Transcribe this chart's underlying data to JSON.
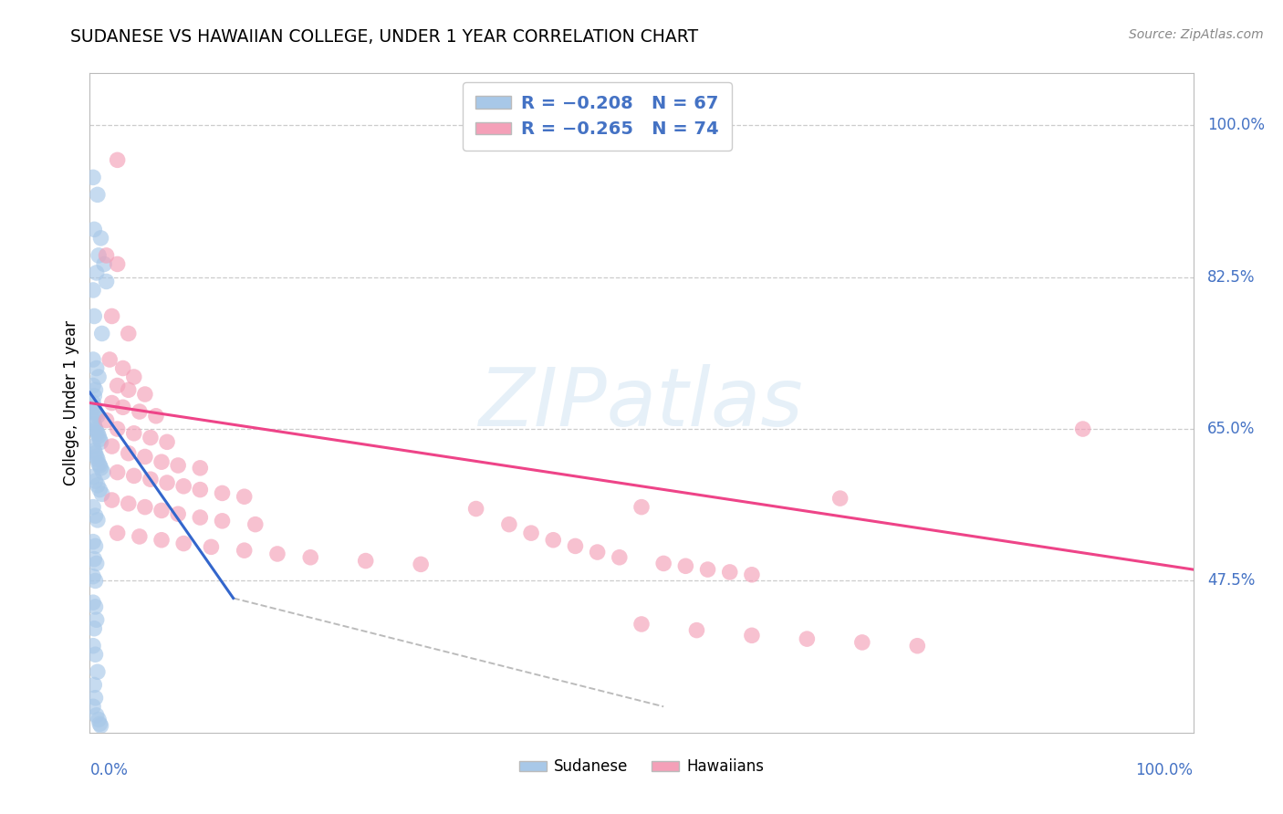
{
  "title": "SUDANESE VS HAWAIIAN COLLEGE, UNDER 1 YEAR CORRELATION CHART",
  "source": "Source: ZipAtlas.com",
  "ylabel": "College, Under 1 year",
  "y_ticks_pct": [
    47.5,
    65.0,
    82.5,
    100.0
  ],
  "x_range": [
    0.0,
    1.0
  ],
  "y_range": [
    0.3,
    1.06
  ],
  "color_blue": "#a8c8e8",
  "color_pink": "#f4a0b8",
  "color_blue_line": "#3366cc",
  "color_pink_line": "#ee4488",
  "color_dashed_line": "#bbbbbb",
  "sudanese_points": [
    [
      0.003,
      0.94
    ],
    [
      0.007,
      0.92
    ],
    [
      0.004,
      0.88
    ],
    [
      0.01,
      0.87
    ],
    [
      0.008,
      0.85
    ],
    [
      0.013,
      0.84
    ],
    [
      0.006,
      0.83
    ],
    [
      0.003,
      0.81
    ],
    [
      0.015,
      0.82
    ],
    [
      0.004,
      0.78
    ],
    [
      0.011,
      0.76
    ],
    [
      0.003,
      0.73
    ],
    [
      0.006,
      0.72
    ],
    [
      0.008,
      0.71
    ],
    [
      0.003,
      0.7
    ],
    [
      0.005,
      0.695
    ],
    [
      0.004,
      0.688
    ],
    [
      0.003,
      0.68
    ],
    [
      0.004,
      0.675
    ],
    [
      0.005,
      0.67
    ],
    [
      0.006,
      0.668
    ],
    [
      0.007,
      0.665
    ],
    [
      0.003,
      0.66
    ],
    [
      0.004,
      0.655
    ],
    [
      0.005,
      0.65
    ],
    [
      0.006,
      0.648
    ],
    [
      0.007,
      0.645
    ],
    [
      0.008,
      0.642
    ],
    [
      0.009,
      0.638
    ],
    [
      0.01,
      0.635
    ],
    [
      0.003,
      0.63
    ],
    [
      0.004,
      0.625
    ],
    [
      0.005,
      0.622
    ],
    [
      0.006,
      0.618
    ],
    [
      0.007,
      0.615
    ],
    [
      0.008,
      0.61
    ],
    [
      0.009,
      0.608
    ],
    [
      0.01,
      0.605
    ],
    [
      0.012,
      0.6
    ],
    [
      0.003,
      0.595
    ],
    [
      0.005,
      0.59
    ],
    [
      0.007,
      0.585
    ],
    [
      0.009,
      0.58
    ],
    [
      0.011,
      0.575
    ],
    [
      0.003,
      0.56
    ],
    [
      0.005,
      0.55
    ],
    [
      0.007,
      0.545
    ],
    [
      0.003,
      0.52
    ],
    [
      0.005,
      0.515
    ],
    [
      0.004,
      0.5
    ],
    [
      0.006,
      0.495
    ],
    [
      0.003,
      0.48
    ],
    [
      0.005,
      0.475
    ],
    [
      0.003,
      0.45
    ],
    [
      0.005,
      0.445
    ],
    [
      0.006,
      0.43
    ],
    [
      0.004,
      0.42
    ],
    [
      0.003,
      0.4
    ],
    [
      0.005,
      0.39
    ],
    [
      0.007,
      0.37
    ],
    [
      0.004,
      0.355
    ],
    [
      0.005,
      0.34
    ],
    [
      0.003,
      0.33
    ],
    [
      0.006,
      0.32
    ],
    [
      0.008,
      0.315
    ],
    [
      0.009,
      0.31
    ],
    [
      0.01,
      0.308
    ]
  ],
  "hawaiian_points": [
    [
      0.025,
      0.96
    ],
    [
      0.015,
      0.85
    ],
    [
      0.025,
      0.84
    ],
    [
      0.02,
      0.78
    ],
    [
      0.035,
      0.76
    ],
    [
      0.018,
      0.73
    ],
    [
      0.03,
      0.72
    ],
    [
      0.04,
      0.71
    ],
    [
      0.025,
      0.7
    ],
    [
      0.035,
      0.695
    ],
    [
      0.05,
      0.69
    ],
    [
      0.02,
      0.68
    ],
    [
      0.03,
      0.675
    ],
    [
      0.045,
      0.67
    ],
    [
      0.06,
      0.665
    ],
    [
      0.015,
      0.66
    ],
    [
      0.025,
      0.65
    ],
    [
      0.04,
      0.645
    ],
    [
      0.055,
      0.64
    ],
    [
      0.07,
      0.635
    ],
    [
      0.02,
      0.63
    ],
    [
      0.035,
      0.622
    ],
    [
      0.05,
      0.618
    ],
    [
      0.065,
      0.612
    ],
    [
      0.08,
      0.608
    ],
    [
      0.1,
      0.605
    ],
    [
      0.025,
      0.6
    ],
    [
      0.04,
      0.596
    ],
    [
      0.055,
      0.592
    ],
    [
      0.07,
      0.588
    ],
    [
      0.085,
      0.584
    ],
    [
      0.1,
      0.58
    ],
    [
      0.12,
      0.576
    ],
    [
      0.14,
      0.572
    ],
    [
      0.02,
      0.568
    ],
    [
      0.035,
      0.564
    ],
    [
      0.05,
      0.56
    ],
    [
      0.065,
      0.556
    ],
    [
      0.08,
      0.552
    ],
    [
      0.1,
      0.548
    ],
    [
      0.12,
      0.544
    ],
    [
      0.15,
      0.54
    ],
    [
      0.025,
      0.53
    ],
    [
      0.045,
      0.526
    ],
    [
      0.065,
      0.522
    ],
    [
      0.085,
      0.518
    ],
    [
      0.11,
      0.514
    ],
    [
      0.14,
      0.51
    ],
    [
      0.17,
      0.506
    ],
    [
      0.2,
      0.502
    ],
    [
      0.25,
      0.498
    ],
    [
      0.3,
      0.494
    ],
    [
      0.35,
      0.558
    ],
    [
      0.38,
      0.54
    ],
    [
      0.4,
      0.53
    ],
    [
      0.42,
      0.522
    ],
    [
      0.44,
      0.515
    ],
    [
      0.46,
      0.508
    ],
    [
      0.48,
      0.502
    ],
    [
      0.5,
      0.56
    ],
    [
      0.52,
      0.495
    ],
    [
      0.54,
      0.492
    ],
    [
      0.56,
      0.488
    ],
    [
      0.58,
      0.485
    ],
    [
      0.6,
      0.482
    ],
    [
      0.68,
      0.57
    ],
    [
      0.9,
      0.65
    ],
    [
      0.5,
      0.425
    ],
    [
      0.55,
      0.418
    ],
    [
      0.6,
      0.412
    ],
    [
      0.65,
      0.408
    ],
    [
      0.7,
      0.404
    ],
    [
      0.75,
      0.4
    ]
  ],
  "blue_line_x": [
    0.0,
    0.13
  ],
  "blue_line_y": [
    0.692,
    0.455
  ],
  "pink_line_x": [
    0.0,
    1.0
  ],
  "pink_line_y": [
    0.68,
    0.488
  ],
  "dashed_line_x": [
    0.13,
    0.52
  ],
  "dashed_line_y": [
    0.455,
    0.33
  ]
}
